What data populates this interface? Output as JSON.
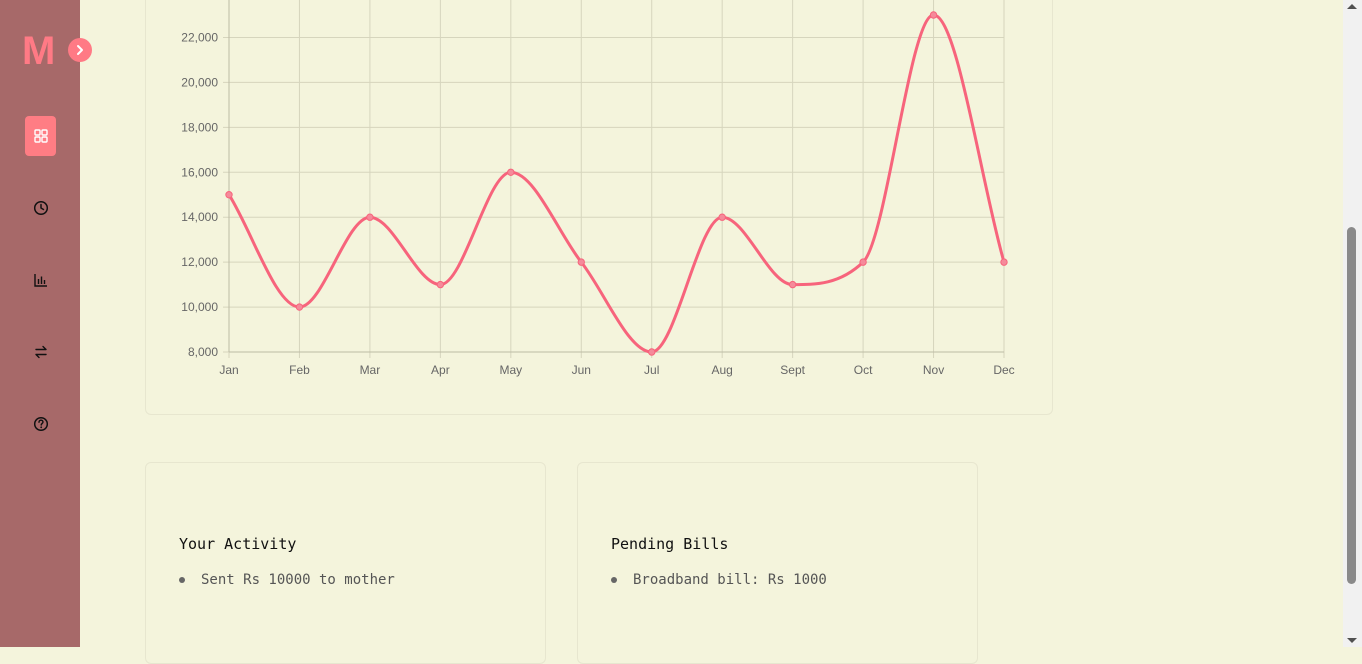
{
  "sidebar": {
    "logo": "M",
    "expand_icon": "chevron-right-icon",
    "items": [
      {
        "name": "dashboard",
        "icon": "grid-icon",
        "active": true
      },
      {
        "name": "history",
        "icon": "clock-icon",
        "active": false
      },
      {
        "name": "analytics",
        "icon": "bar-chart-icon",
        "active": false
      },
      {
        "name": "transfers",
        "icon": "arrows-exchange-icon",
        "active": false
      },
      {
        "name": "help",
        "icon": "help-circle-icon",
        "active": false
      }
    ]
  },
  "colors": {
    "background": "#f4f4dc",
    "sidebar": "#a76969",
    "accent": "#ff7a85",
    "line": "#f7647c"
  },
  "chart_data": {
    "type": "line",
    "categories": [
      "Jan",
      "Feb",
      "Mar",
      "Apr",
      "May",
      "Jun",
      "Jul",
      "Aug",
      "Sept",
      "Oct",
      "Nov",
      "Dec"
    ],
    "values": [
      15000,
      10000,
      14000,
      11000,
      16000,
      12000,
      8000,
      14000,
      11000,
      12000,
      23000,
      12000
    ],
    "y_ticks": [
      "8,000",
      "10,000",
      "12,000",
      "14,000",
      "16,000",
      "18,000",
      "20,000",
      "22,000"
    ],
    "ylim": [
      8000,
      23000
    ],
    "grid": true,
    "title": "",
    "xlabel": "",
    "ylabel": ""
  },
  "activity": {
    "title": "Your Activity",
    "items": [
      "Sent Rs 10000 to mother"
    ]
  },
  "bills": {
    "title": "Pending Bills",
    "items": [
      "Broadband bill: Rs 1000"
    ]
  }
}
